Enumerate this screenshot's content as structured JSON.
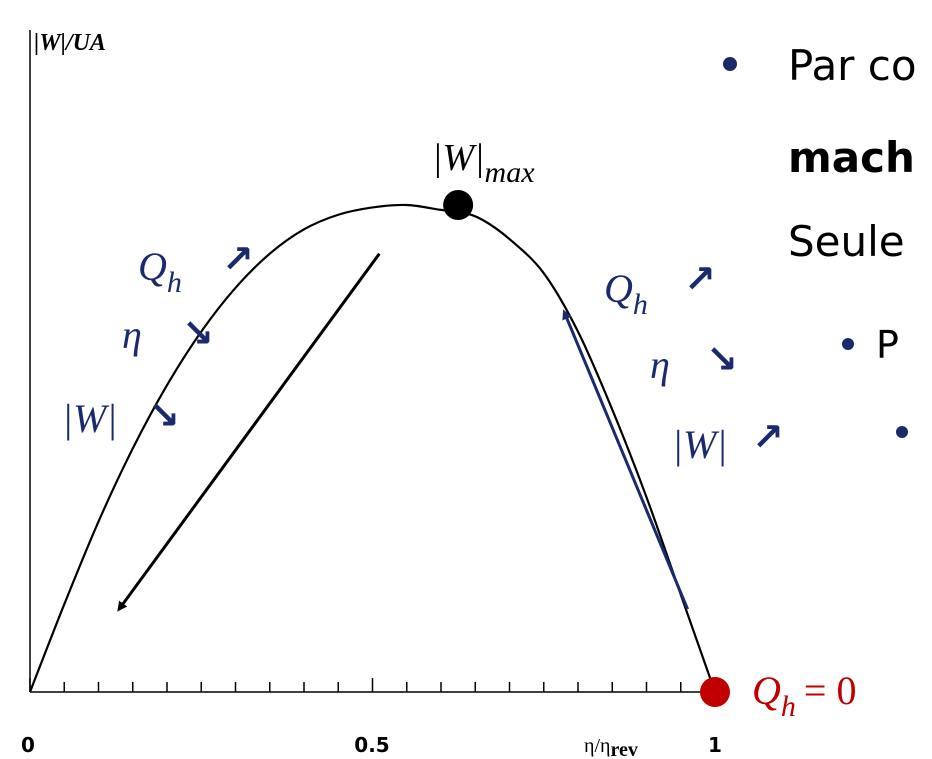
{
  "chart_data": {
    "type": "line",
    "ylabel": "|W|/UA",
    "xlabel": "η/η",
    "xlabel_sub": "rev",
    "xlim": [
      0,
      1
    ],
    "ylim": [
      0,
      1
    ],
    "x_ticks": [
      "0",
      "0.5",
      "1"
    ],
    "x": [
      0,
      0.05,
      0.1,
      0.15,
      0.2,
      0.25,
      0.3,
      0.35,
      0.4,
      0.45,
      0.5,
      0.55,
      0.6,
      0.63,
      0.66,
      0.7,
      0.75,
      0.8,
      0.85,
      0.9,
      0.95,
      0.98,
      1.0
    ],
    "y": [
      0,
      0.18,
      0.35,
      0.5,
      0.63,
      0.74,
      0.83,
      0.9,
      0.95,
      0.98,
      0.995,
      1.0,
      0.99,
      0.985,
      0.97,
      0.93,
      0.86,
      0.74,
      0.58,
      0.4,
      0.2,
      0.08,
      0
    ],
    "points": [
      {
        "label": "|W|",
        "label_sub": "max",
        "x": 0.625,
        "y": 1.0,
        "color": "#000000"
      },
      {
        "label": "Q",
        "label_sub": "h",
        "label_suffix": "= 0",
        "x": 1.0,
        "y": 0,
        "color": "#c00000"
      }
    ],
    "annotations": {
      "left": {
        "q": "Q",
        "q_sub": "h",
        "q_arrow": "↗",
        "eta": "η",
        "eta_arrow": "↘",
        "w": "|W|",
        "w_arrow": "↘"
      },
      "right": {
        "q": "Q",
        "q_sub": "h",
        "q_arrow": "↗",
        "eta": "η",
        "eta_arrow": "↘",
        "w": "|W|",
        "w_arrow": "↗"
      }
    },
    "arrows": [
      {
        "from": [
          0.51,
          0.9
        ],
        "to": [
          0.13,
          0.17
        ],
        "color": "#000000"
      },
      {
        "from": [
          0.96,
          0.17
        ],
        "to": [
          0.78,
          0.78
        ],
        "color": "#1a2a6c"
      }
    ],
    "grid": false,
    "legend": "none"
  },
  "side_text": {
    "line1": "Par co",
    "line2": "mach",
    "line3": "Seule",
    "line4": "P"
  },
  "colors": {
    "annotation": "#1a2a6c",
    "bullet": "#1a2a6c",
    "max_point": "#000000",
    "zero_point": "#c00000"
  }
}
